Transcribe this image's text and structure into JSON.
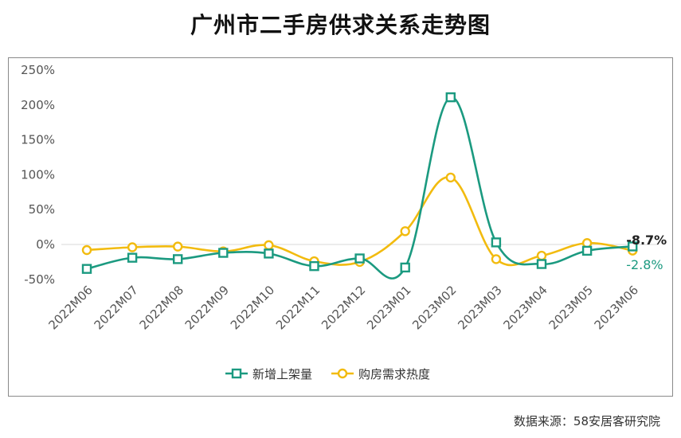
{
  "title": "广州市二手房供求关系走势图",
  "source": "数据来源：58安居客研究院",
  "colors": {
    "supply": "#1b9a80",
    "demand": "#f2bb0f",
    "grid": "#d9d9d9",
    "text": "#555555"
  },
  "chart_data": {
    "type": "line",
    "title": "广州市二手房供求关系走势图",
    "categories": [
      "2022M06",
      "2022M07",
      "2022M08",
      "2022M09",
      "2022M10",
      "2022M11",
      "2022M12",
      "2023M01",
      "2023M02",
      "2023M03",
      "2023M04",
      "2023M05",
      "2023M06"
    ],
    "ylim": [
      -50,
      250
    ],
    "yticks": [
      -50,
      0,
      50,
      100,
      150,
      200,
      250
    ],
    "ytick_labels": [
      "-50%",
      "0%",
      "50%",
      "100%",
      "150%",
      "200%",
      "250%"
    ],
    "grid": "zero-line only",
    "legend": "bottom",
    "series": [
      {
        "name": "新增上架量",
        "marker": "square",
        "color": "#1b9a80",
        "values": [
          -35,
          -19,
          -21,
          -12,
          -13,
          -31,
          -20,
          -33,
          211,
          3,
          -28,
          -9,
          -2.8
        ],
        "end_label": "-2.8%"
      },
      {
        "name": "购房需求热度",
        "marker": "circle",
        "color": "#f2bb0f",
        "values": [
          -8,
          -4,
          -3,
          -10,
          -1,
          -24,
          -25,
          19,
          96,
          -21,
          -16,
          2,
          -8.7
        ],
        "end_label": "-8.7%"
      }
    ]
  }
}
